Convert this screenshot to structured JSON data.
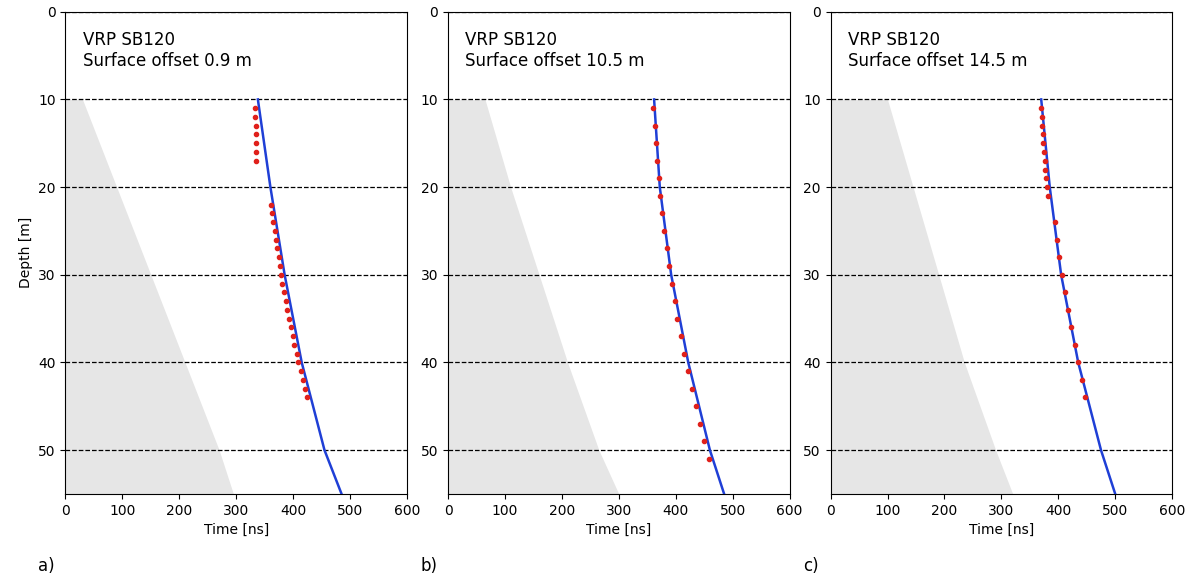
{
  "chart_data": [
    {
      "type": "line",
      "annotations": [
        "VRP SB120",
        "Surface offset 0.9 m"
      ],
      "subplot_label": "a)",
      "x_label": "Time [ns]",
      "y_label": "Depth [m]",
      "xlim": [
        0,
        600
      ],
      "xticks": [
        0,
        100,
        200,
        300,
        400,
        500,
        600
      ],
      "ylim": [
        55,
        0
      ],
      "yticks": [
        0,
        10,
        20,
        30,
        40,
        50
      ],
      "grid": "y",
      "series": [
        {
          "type": "area",
          "color": "#e6e6e6",
          "depth": [
            10,
            20,
            30,
            40,
            50,
            55
          ],
          "time": [
            30,
            90,
            150,
            210,
            270,
            295
          ]
        },
        {
          "type": "line",
          "color": "#1f3fd6",
          "line_style": "solid",
          "depth": [
            10,
            20,
            30,
            40,
            50,
            55
          ],
          "time": [
            338,
            360,
            385,
            415,
            455,
            485
          ]
        },
        {
          "type": "scatter",
          "color": "#e0201b",
          "marker": "o",
          "depth": [
            11,
            12,
            13,
            14,
            15,
            16,
            17,
            22,
            23,
            24,
            25,
            26,
            27,
            28,
            29,
            30,
            31,
            32,
            33,
            34,
            35,
            36,
            37,
            38,
            39,
            40,
            41,
            42,
            43,
            44
          ],
          "time": [
            333,
            333,
            334,
            334,
            335,
            335,
            335,
            361,
            363,
            365,
            368,
            370,
            372,
            375,
            377,
            379,
            380,
            384,
            387,
            390,
            393,
            396,
            399,
            402,
            406,
            409,
            413,
            417,
            421,
            425
          ]
        }
      ]
    },
    {
      "type": "line",
      "annotations": [
        "VRP SB120",
        "Surface offset 10.5 m"
      ],
      "subplot_label": "b)",
      "x_label": "Time [ns]",
      "xlim": [
        0,
        600
      ],
      "xticks": [
        0,
        100,
        200,
        300,
        400,
        500,
        600
      ],
      "ylim": [
        55,
        0
      ],
      "yticks": [
        0,
        10,
        20,
        30,
        40,
        50
      ],
      "grid": "y",
      "series": [
        {
          "type": "area",
          "color": "#e6e6e6",
          "depth": [
            10,
            20,
            30,
            40,
            50,
            55
          ],
          "time": [
            65,
            110,
            160,
            210,
            265,
            300
          ]
        },
        {
          "type": "line",
          "color": "#1f3fd6",
          "line_style": "solid",
          "depth": [
            10,
            20,
            30,
            40,
            50,
            55
          ],
          "time": [
            362,
            372,
            392,
            422,
            460,
            485
          ]
        },
        {
          "type": "scatter",
          "color": "#e0201b",
          "marker": "o",
          "depth": [
            11,
            13,
            15,
            17,
            19,
            21,
            23,
            25,
            27,
            29,
            31,
            33,
            35,
            37,
            39,
            41,
            43,
            45,
            47,
            49,
            51
          ],
          "time": [
            360,
            363,
            365,
            367,
            370,
            373,
            376,
            380,
            384,
            388,
            393,
            398,
            403,
            409,
            415,
            421,
            428,
            435,
            442,
            450,
            458
          ]
        }
      ]
    },
    {
      "type": "line",
      "annotations": [
        "VRP SB120",
        "Surface offset 14.5 m"
      ],
      "subplot_label": "c)",
      "x_label": "Time [ns]",
      "xlim": [
        0,
        600
      ],
      "xticks": [
        0,
        100,
        200,
        300,
        400,
        500,
        600
      ],
      "ylim": [
        55,
        0
      ],
      "yticks": [
        0,
        10,
        20,
        30,
        40,
        50
      ],
      "grid": "y",
      "series": [
        {
          "type": "area",
          "color": "#e6e6e6",
          "depth": [
            10,
            20,
            30,
            40,
            50,
            55
          ],
          "time": [
            100,
            145,
            190,
            235,
            290,
            320
          ]
        },
        {
          "type": "line",
          "color": "#1f3fd6",
          "line_style": "solid",
          "depth": [
            10,
            20,
            30,
            40,
            50,
            55
          ],
          "time": [
            370,
            385,
            405,
            435,
            475,
            500
          ]
        },
        {
          "type": "scatter",
          "color": "#e0201b",
          "marker": "o",
          "depth": [
            11,
            12,
            13,
            14,
            15,
            16,
            17,
            18,
            19,
            20,
            21,
            24,
            26,
            28,
            30,
            32,
            34,
            36,
            38,
            40,
            42,
            44
          ],
          "time": [
            370,
            371,
            372,
            373,
            374,
            375,
            376,
            377,
            379,
            380,
            382,
            394,
            398,
            402,
            407,
            412,
            417,
            423,
            429,
            435,
            441,
            447
          ]
        }
      ]
    }
  ]
}
